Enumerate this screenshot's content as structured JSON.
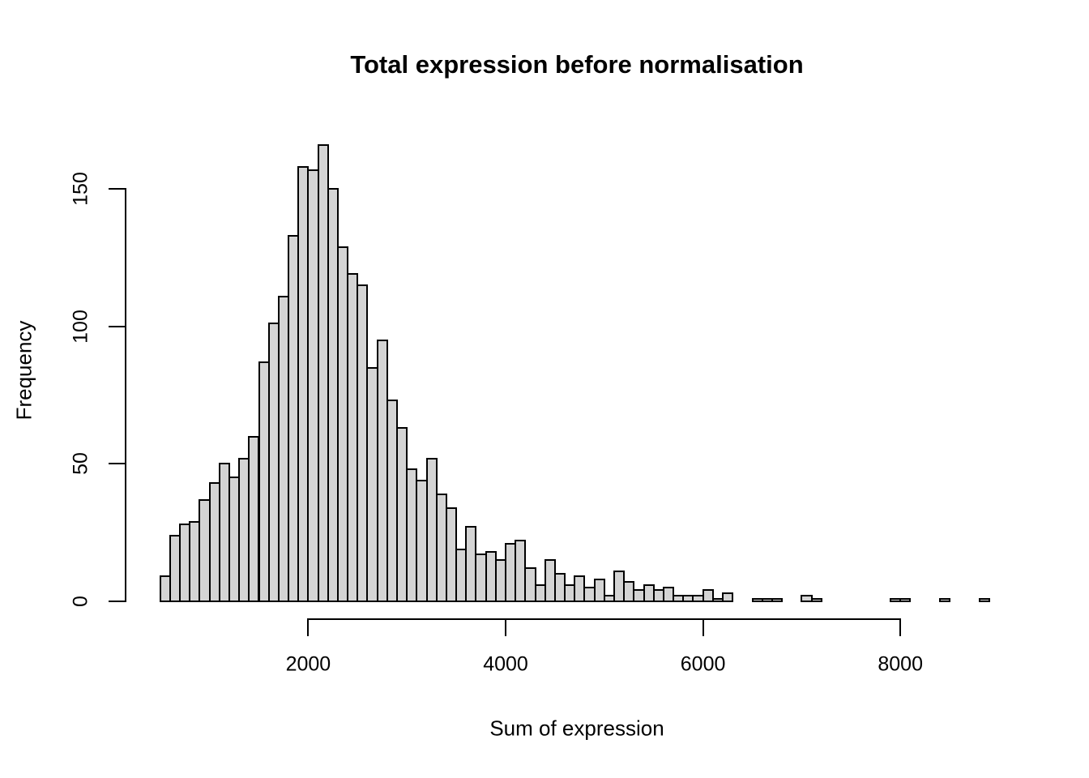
{
  "chart_data": {
    "type": "bar",
    "subtype": "histogram",
    "title": "Total expression before normalisation",
    "xlabel": "Sum of expression",
    "ylabel": "Frequency",
    "bin_start": 500,
    "bin_width": 100,
    "counts": [
      9,
      24,
      28,
      29,
      37,
      43,
      50,
      45,
      52,
      60,
      87,
      101,
      111,
      133,
      158,
      157,
      166,
      150,
      129,
      119,
      115,
      85,
      95,
      73,
      63,
      48,
      44,
      52,
      39,
      34,
      19,
      27,
      17,
      18,
      15,
      21,
      22,
      12,
      6,
      15,
      10,
      6,
      9,
      5,
      8,
      2,
      11,
      7,
      4,
      6,
      4,
      5,
      2,
      2,
      2,
      4,
      1,
      3,
      0,
      0,
      1,
      1,
      1,
      0,
      0,
      2,
      1,
      0,
      0,
      0,
      0,
      0,
      0,
      0,
      1,
      1,
      0,
      0,
      0,
      1,
      0,
      0,
      0,
      1
    ],
    "x_ticks": [
      2000,
      4000,
      6000,
      8000
    ],
    "y_ticks": [
      0,
      50,
      100,
      150
    ],
    "xlim": [
      500,
      8900
    ],
    "ylim": [
      0,
      170
    ],
    "grid": false,
    "bar_fill": "#d4d4d4",
    "bar_stroke": "#000000"
  }
}
